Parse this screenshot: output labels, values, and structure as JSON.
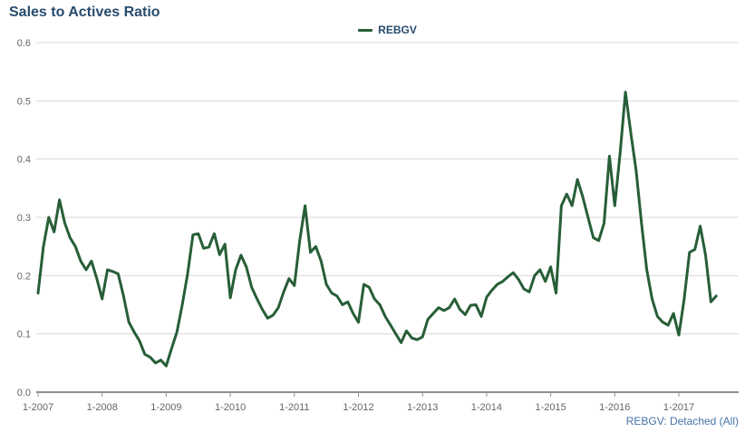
{
  "title": "Sales to Actives Ratio",
  "legend": {
    "label": "REBGV"
  },
  "footer": {
    "label": "REBGV: Detached (All)"
  },
  "colors": {
    "series": "#275e37",
    "title_text": "#274b6d",
    "axis_text": "#666666",
    "gridline": "#d8d8d8",
    "axis_line": "#8f8f8f",
    "footer_link": "#4572a7",
    "background": "#ffffff"
  },
  "chart_data": {
    "type": "line",
    "title": "Sales to Actives Ratio",
    "xlabel": "",
    "ylabel": "",
    "x_start": "1-2007",
    "x_frequency": "monthly",
    "x_tick_labels": [
      "1-2007",
      "1-2008",
      "1-2009",
      "1-2010",
      "1-2011",
      "1-2012",
      "1-2013",
      "1-2014",
      "1-2015",
      "1-2016",
      "1-2017"
    ],
    "y_tick_labels": [
      "0.0",
      "0.1",
      "0.2",
      "0.3",
      "0.4",
      "0.5",
      "0.6"
    ],
    "y_ticks": [
      0.0,
      0.1,
      0.2,
      0.3,
      0.4,
      0.5,
      0.6
    ],
    "ylim": [
      0.0,
      0.6
    ],
    "grid": true,
    "legend_position": "top-center",
    "series": [
      {
        "name": "REBGV",
        "values": [
          0.17,
          0.25,
          0.3,
          0.275,
          0.33,
          0.29,
          0.265,
          0.25,
          0.225,
          0.21,
          0.225,
          0.195,
          0.16,
          0.21,
          0.207,
          0.203,
          0.165,
          0.12,
          0.103,
          0.088,
          0.065,
          0.06,
          0.05,
          0.055,
          0.045,
          0.075,
          0.103,
          0.15,
          0.203,
          0.27,
          0.272,
          0.247,
          0.249,
          0.272,
          0.236,
          0.254,
          0.162,
          0.21,
          0.235,
          0.215,
          0.18,
          0.16,
          0.142,
          0.127,
          0.132,
          0.145,
          0.172,
          0.195,
          0.183,
          0.26,
          0.32,
          0.24,
          0.25,
          0.225,
          0.185,
          0.17,
          0.165,
          0.15,
          0.155,
          0.135,
          0.12,
          0.185,
          0.18,
          0.16,
          0.15,
          0.13,
          0.115,
          0.1,
          0.085,
          0.105,
          0.093,
          0.09,
          0.095,
          0.125,
          0.135,
          0.145,
          0.14,
          0.145,
          0.16,
          0.142,
          0.133,
          0.149,
          0.15,
          0.13,
          0.163,
          0.175,
          0.185,
          0.19,
          0.198,
          0.205,
          0.193,
          0.177,
          0.172,
          0.2,
          0.21,
          0.19,
          0.215,
          0.17,
          0.32,
          0.34,
          0.32,
          0.365,
          0.335,
          0.3,
          0.265,
          0.26,
          0.29,
          0.405,
          0.32,
          0.41,
          0.515,
          0.445,
          0.38,
          0.29,
          0.21,
          0.16,
          0.13,
          0.12,
          0.115,
          0.135,
          0.098,
          0.16,
          0.24,
          0.245,
          0.285,
          0.235,
          0.155,
          0.165
        ]
      }
    ]
  }
}
